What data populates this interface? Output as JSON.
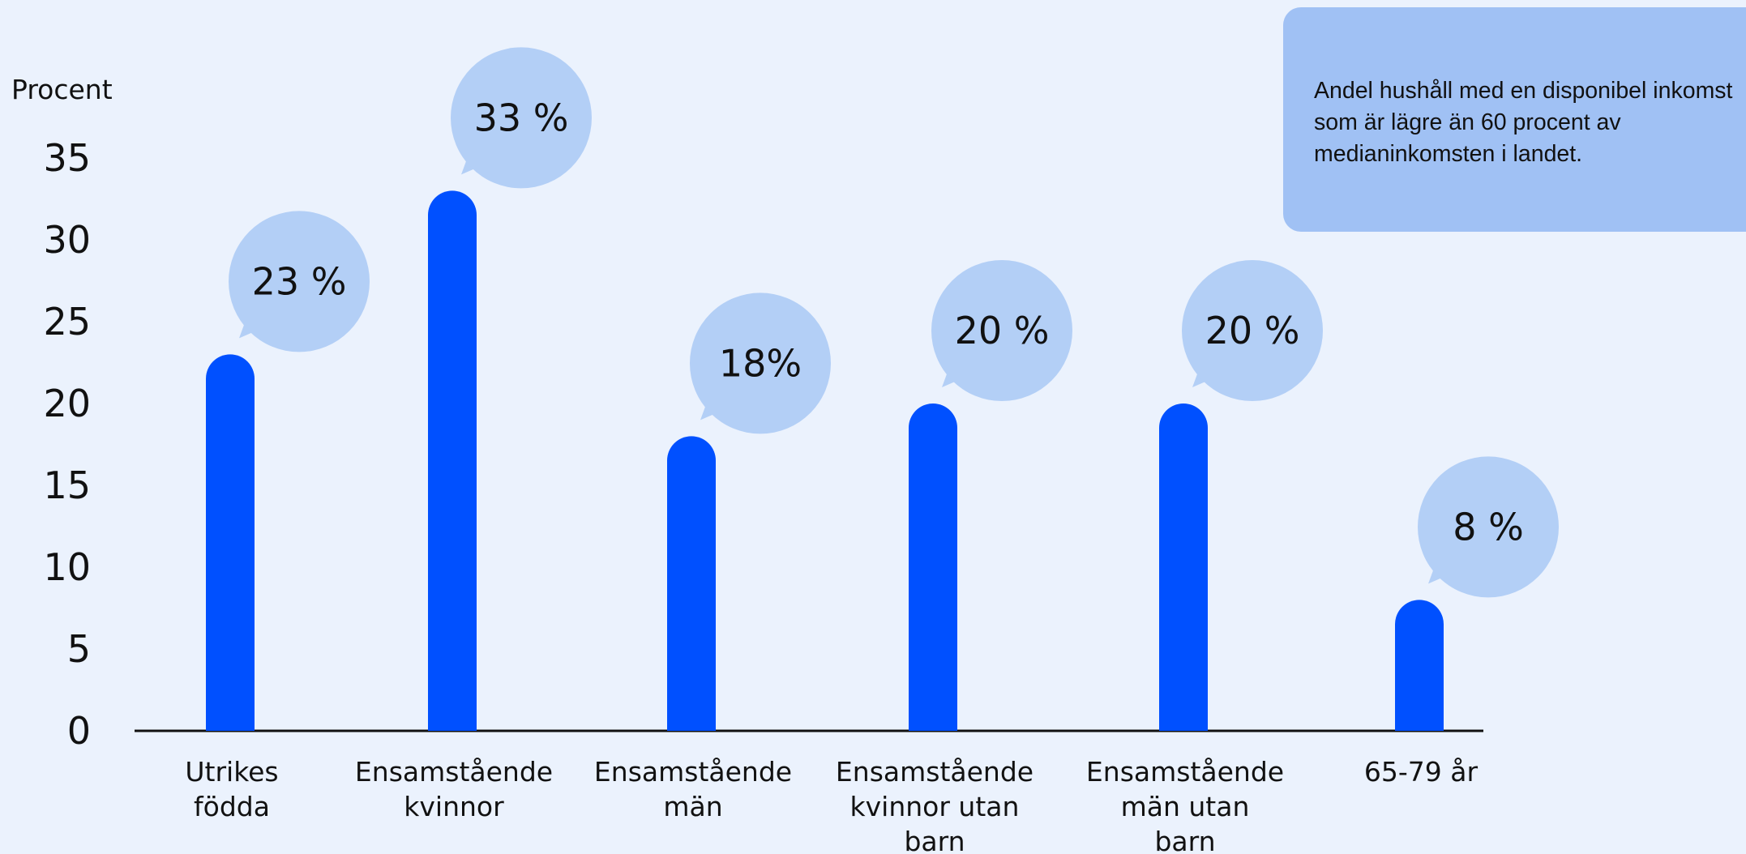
{
  "chart_data": {
    "type": "bar",
    "ylabel": "Procent",
    "xlabel": "",
    "title": "",
    "ylim": [
      0,
      35
    ],
    "yticks": [
      "0",
      "5",
      "10",
      "15",
      "20",
      "25",
      "30",
      "35"
    ],
    "categories": [
      [
        "Utrikes",
        "födda"
      ],
      [
        "Ensamstående",
        "kvinnor"
      ],
      [
        "Ensamstående",
        "män"
      ],
      [
        "Ensamstående",
        "kvinnor utan",
        "barn"
      ],
      [
        "Ensamstående",
        "män utan",
        "barn"
      ],
      [
        "65-79 år"
      ]
    ],
    "values": [
      23,
      33,
      18,
      20,
      20,
      8
    ],
    "data_labels": [
      "23 %",
      "33 %",
      "18%",
      "20 %",
      "20 %",
      "8 %"
    ],
    "grid": false,
    "bar_color": "#0050ff",
    "bubble_color": "#b3cff6"
  },
  "note": {
    "text": "Andel hushåll med en disponibel inkomst som är lägre än 60 procent av medianinkomsten i landet."
  }
}
